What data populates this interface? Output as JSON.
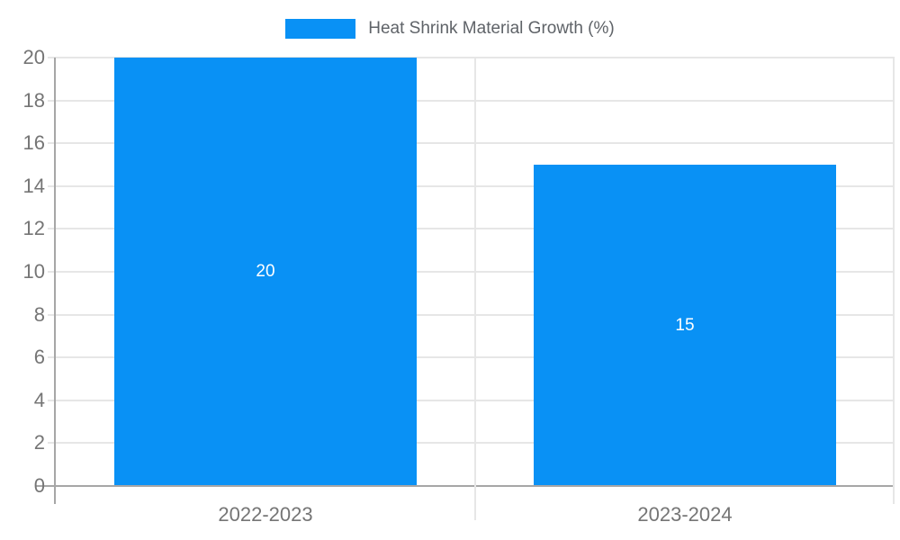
{
  "chart_data": {
    "type": "bar",
    "title": "",
    "legend": {
      "label": "Heat Shrink Material Growth (%)",
      "position": "top",
      "swatch_color": "#0991f5"
    },
    "categories": [
      "2022-2023",
      "2023-2024"
    ],
    "values": [
      20,
      15
    ],
    "bar_labels": [
      "20",
      "15"
    ],
    "xlabel": "",
    "ylabel": "",
    "ylim": [
      0,
      20
    ],
    "ytick_step": 2,
    "yticks": [
      0,
      2,
      4,
      6,
      8,
      10,
      12,
      14,
      16,
      18,
      20
    ],
    "grid": "on",
    "colors": {
      "bar": "#0991f5",
      "bar_label": "#ffffff",
      "axis": "#a6a6a6",
      "gridline": "#e6e6e6",
      "tick_label": "#757575",
      "legend_text": "#5f6368",
      "background": "#ffffff"
    }
  }
}
